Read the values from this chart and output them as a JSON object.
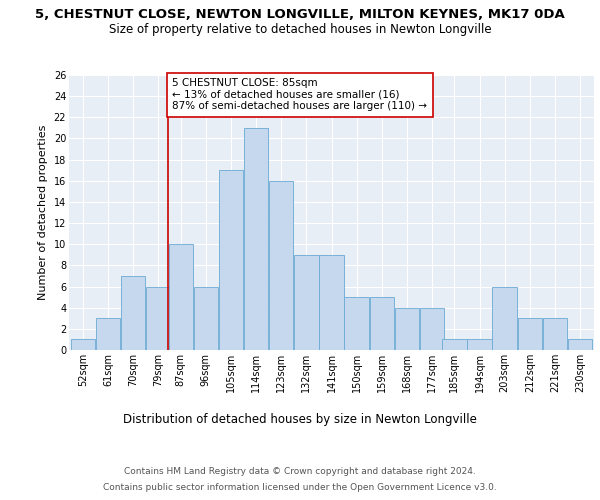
{
  "title1": "5, CHESTNUT CLOSE, NEWTON LONGVILLE, MILTON KEYNES, MK17 0DA",
  "title2": "Size of property relative to detached houses in Newton Longville",
  "xlabel": "Distribution of detached houses by size in Newton Longville",
  "ylabel": "Number of detached properties",
  "footer1": "Contains HM Land Registry data © Crown copyright and database right 2024.",
  "footer2": "Contains public sector information licensed under the Open Government Licence v3.0.",
  "bin_labels": [
    "52sqm",
    "61sqm",
    "70sqm",
    "79sqm",
    "87sqm",
    "96sqm",
    "105sqm",
    "114sqm",
    "123sqm",
    "132sqm",
    "141sqm",
    "150sqm",
    "159sqm",
    "168sqm",
    "177sqm",
    "185sqm",
    "194sqm",
    "203sqm",
    "212sqm",
    "221sqm",
    "230sqm"
  ],
  "bin_edges": [
    52,
    61,
    70,
    79,
    87,
    96,
    105,
    114,
    123,
    132,
    141,
    150,
    159,
    168,
    177,
    185,
    194,
    203,
    212,
    221,
    230
  ],
  "values": [
    1,
    3,
    7,
    6,
    10,
    6,
    17,
    21,
    16,
    9,
    9,
    5,
    5,
    4,
    4,
    1,
    1,
    6,
    3,
    3,
    1
  ],
  "bar_color": "#c5d8ee",
  "bar_edge_color": "#6aaad4",
  "vline_x": 87,
  "vline_color": "#cc0000",
  "annotation_text": "5 CHESTNUT CLOSE: 85sqm\n← 13% of detached houses are smaller (16)\n87% of semi-detached houses are larger (110) →",
  "annotation_box_color": "#ffffff",
  "annotation_box_edge": "#cc0000",
  "ylim": [
    0,
    26
  ],
  "yticks": [
    0,
    2,
    4,
    6,
    8,
    10,
    12,
    14,
    16,
    18,
    20,
    22,
    24,
    26
  ],
  "background_color": "#e8eef6",
  "grid_color": "#ffffff",
  "fig_bg_color": "#ffffff",
  "title1_fontsize": 9.5,
  "title2_fontsize": 8.5,
  "xlabel_fontsize": 8.5,
  "ylabel_fontsize": 8,
  "tick_fontsize": 7,
  "footer_fontsize": 6.5,
  "ann_fontsize": 7.5
}
